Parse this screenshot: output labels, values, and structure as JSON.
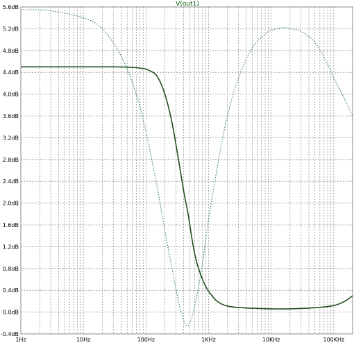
{
  "chart_data": {
    "type": "line",
    "title": "V(out1)",
    "x_scale": "log",
    "y_scale": "linear",
    "xlim_hz": [
      1,
      200000
    ],
    "ylim_db": [
      -0.4,
      5.6
    ],
    "grid": true,
    "x_ticks": [
      {
        "value": 1,
        "label": "1Hz"
      },
      {
        "value": 10,
        "label": "10Hz"
      },
      {
        "value": 100,
        "label": "100Hz"
      },
      {
        "value": 1000,
        "label": "1KHz"
      },
      {
        "value": 10000,
        "label": "10KHz"
      },
      {
        "value": 100000,
        "label": "100KHz"
      }
    ],
    "y_ticks": [
      {
        "value": 5.6,
        "label": "5.6dB"
      },
      {
        "value": 5.2,
        "label": "5.2dB"
      },
      {
        "value": 4.8,
        "label": "4.8dB"
      },
      {
        "value": 4.4,
        "label": "4.4dB"
      },
      {
        "value": 4.0,
        "label": "4.0dB"
      },
      {
        "value": 3.6,
        "label": "3.6dB"
      },
      {
        "value": 3.2,
        "label": "3.2dB"
      },
      {
        "value": 2.8,
        "label": "2.8dB"
      },
      {
        "value": 2.4,
        "label": "2.4dB"
      },
      {
        "value": 2.0,
        "label": "2.0dB"
      },
      {
        "value": 1.6,
        "label": "1.6dB"
      },
      {
        "value": 1.2,
        "label": "1.2dB"
      },
      {
        "value": 0.8,
        "label": "0.8dB"
      },
      {
        "value": 0.4,
        "label": "0.4dB"
      },
      {
        "value": 0.0,
        "label": "0.0dB"
      },
      {
        "value": -0.4,
        "label": "-0.4dB"
      }
    ],
    "series": [
      {
        "style": "solid",
        "color": "#1f4f1f",
        "x": [
          1,
          10,
          30,
          60,
          90,
          110,
          150,
          200,
          260,
          330,
          400,
          470,
          560,
          650,
          800,
          950,
          1100,
          1300,
          1600,
          2000,
          2600,
          3500,
          5000,
          10000,
          20000,
          50000,
          100000,
          150000,
          200000
        ],
        "y": [
          4.5,
          4.5,
          4.5,
          4.49,
          4.47,
          4.44,
          4.33,
          4.0,
          3.48,
          2.8,
          2.22,
          1.8,
          1.25,
          0.9,
          0.6,
          0.42,
          0.32,
          0.22,
          0.15,
          0.11,
          0.09,
          0.08,
          0.07,
          0.06,
          0.06,
          0.08,
          0.12,
          0.2,
          0.3
        ]
      },
      {
        "style": "dotted",
        "color": "#2e7d4a",
        "x": [
          1,
          3,
          10,
          20,
          40,
          70,
          100,
          150,
          200,
          260,
          330,
          400,
          460,
          530,
          650,
          800,
          1000,
          1500,
          2000,
          3000,
          5000,
          8000,
          10000,
          15000,
          20000,
          30000,
          50000,
          80000,
          100000,
          150000,
          200000
        ],
        "y": [
          5.55,
          5.53,
          5.4,
          5.2,
          4.7,
          4.0,
          3.3,
          2.3,
          1.5,
          0.8,
          0.2,
          -0.15,
          -0.25,
          -0.13,
          0.3,
          0.9,
          1.7,
          2.9,
          3.6,
          4.3,
          4.85,
          5.1,
          5.17,
          5.22,
          5.2,
          5.15,
          4.95,
          4.55,
          4.3,
          3.9,
          3.6
        ]
      }
    ]
  },
  "style": {
    "background": "#ffffff",
    "grid_color": "#6f6f6f",
    "axis_color": "#8a8a8a"
  }
}
